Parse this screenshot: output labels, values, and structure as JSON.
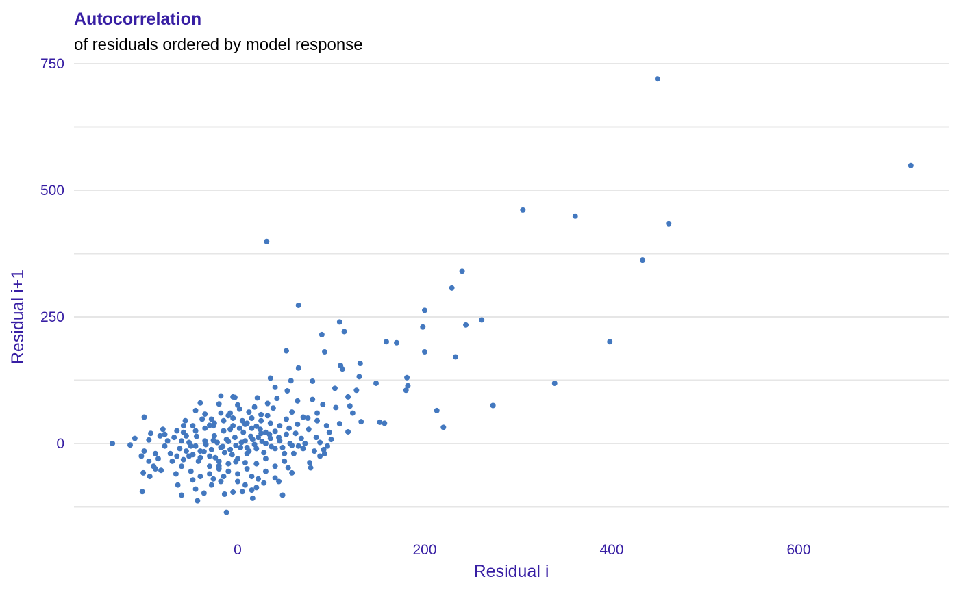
{
  "chart_data": {
    "type": "scatter",
    "title": "Autocorrelation",
    "subtitle": "of residuals ordered by model response",
    "xlabel": "Residual i",
    "ylabel": "Residual i+1",
    "xlim": [
      -145,
      760
    ],
    "ylim": [
      -145,
      760
    ],
    "xticks": [
      0,
      200,
      400,
      600
    ],
    "xtick_labels": [
      "0",
      "200",
      "400",
      "600"
    ],
    "yticks": [
      0,
      250,
      500,
      750
    ],
    "ytick_labels": [
      "0",
      "250",
      "500",
      "750"
    ],
    "y_minor_gridlines": [
      -125,
      125,
      375,
      625
    ],
    "grid": true,
    "point_color": "#4378bf",
    "grid_color": "#e6e6e6",
    "text_color": "#371ea3",
    "points": [
      [
        449,
        720
      ],
      [
        720,
        549
      ],
      [
        305,
        461
      ],
      [
        361,
        449
      ],
      [
        461,
        434
      ],
      [
        433,
        362
      ],
      [
        31,
        399
      ],
      [
        240,
        340
      ],
      [
        229,
        307
      ],
      [
        65,
        273
      ],
      [
        200,
        263
      ],
      [
        261,
        244
      ],
      [
        109,
        240
      ],
      [
        244,
        234
      ],
      [
        198,
        230
      ],
      [
        114,
        221
      ],
      [
        90,
        215
      ],
      [
        159,
        201
      ],
      [
        170,
        199
      ],
      [
        398,
        201
      ],
      [
        52,
        183
      ],
      [
        93,
        181
      ],
      [
        200,
        181
      ],
      [
        233,
        171
      ],
      [
        131,
        158
      ],
      [
        110,
        154
      ],
      [
        112,
        147
      ],
      [
        65,
        149
      ],
      [
        130,
        132
      ],
      [
        181,
        130
      ],
      [
        35,
        129
      ],
      [
        57,
        124
      ],
      [
        80,
        123
      ],
      [
        148,
        119
      ],
      [
        339,
        119
      ],
      [
        182,
        114
      ],
      [
        104,
        109
      ],
      [
        180,
        105
      ],
      [
        127,
        105
      ],
      [
        40,
        111
      ],
      [
        53,
        104
      ],
      [
        -18,
        94
      ],
      [
        -5,
        92
      ],
      [
        -3,
        91
      ],
      [
        21,
        90
      ],
      [
        42,
        89
      ],
      [
        80,
        87
      ],
      [
        118,
        92
      ],
      [
        -40,
        80
      ],
      [
        -20,
        78
      ],
      [
        0,
        76
      ],
      [
        32,
        79
      ],
      [
        64,
        84
      ],
      [
        91,
        77
      ],
      [
        273,
        75
      ],
      [
        105,
        71
      ],
      [
        120,
        74
      ],
      [
        213,
        65
      ],
      [
        123,
        60
      ],
      [
        -100,
        52
      ],
      [
        -45,
        65
      ],
      [
        -35,
        58
      ],
      [
        -10,
        55
      ],
      [
        25,
        57
      ],
      [
        85,
        60
      ],
      [
        109,
        39
      ],
      [
        132,
        43
      ],
      [
        152,
        42
      ],
      [
        157,
        40
      ],
      [
        -56,
        45
      ],
      [
        -26,
        35
      ],
      [
        8,
        38
      ],
      [
        75,
        50
      ],
      [
        220,
        32
      ],
      [
        -80,
        28
      ],
      [
        -65,
        25
      ],
      [
        -58,
        22
      ],
      [
        118,
        23
      ],
      [
        -93,
        20
      ],
      [
        -110,
        10
      ],
      [
        -83,
        15
      ],
      [
        -75,
        5
      ],
      [
        -95,
        7
      ],
      [
        -134,
        0
      ],
      [
        -115,
        -3
      ],
      [
        -100,
        -15
      ],
      [
        -88,
        -20
      ],
      [
        -103,
        -25
      ],
      [
        -95,
        -35
      ],
      [
        -90,
        -45
      ],
      [
        -88,
        -50
      ],
      [
        -101,
        -58
      ],
      [
        -102,
        -95
      ],
      [
        -94,
        -65
      ],
      [
        -82,
        -53
      ],
      [
        -64,
        -82
      ],
      [
        -60,
        -102
      ],
      [
        -45,
        -90
      ],
      [
        -43,
        -113
      ],
      [
        -36,
        -98
      ],
      [
        -28,
        -82
      ],
      [
        -18,
        -75
      ],
      [
        -14,
        -100
      ],
      [
        -12,
        -136
      ],
      [
        -5,
        -96
      ],
      [
        5,
        -95
      ],
      [
        15,
        -92
      ],
      [
        16,
        -108
      ],
      [
        20,
        -87
      ],
      [
        28,
        -78
      ],
      [
        40,
        -68
      ],
      [
        48,
        -102
      ],
      [
        58,
        -58
      ],
      [
        77,
        -38
      ],
      [
        88,
        -25
      ],
      [
        93,
        -20
      ],
      [
        82,
        -15
      ],
      [
        70,
        -10
      ],
      [
        65,
        -5
      ],
      [
        56,
        0
      ],
      [
        45,
        5
      ],
      [
        35,
        10
      ],
      [
        25,
        20
      ],
      [
        15,
        30
      ],
      [
        10,
        40
      ],
      [
        -5,
        35
      ],
      [
        -15,
        25
      ],
      [
        -25,
        15
      ],
      [
        -35,
        5
      ],
      [
        -45,
        -5
      ],
      [
        -55,
        -15
      ],
      [
        -65,
        -25
      ],
      [
        -70,
        -35
      ],
      [
        -60,
        -45
      ],
      [
        -50,
        -55
      ],
      [
        -40,
        -65
      ],
      [
        -30,
        -60
      ],
      [
        -20,
        -50
      ],
      [
        -10,
        -40
      ],
      [
        0,
        -30
      ],
      [
        10,
        -20
      ],
      [
        20,
        -10
      ],
      [
        30,
        0
      ],
      [
        40,
        -10
      ],
      [
        50,
        -20
      ],
      [
        30,
        -30
      ],
      [
        20,
        -40
      ],
      [
        10,
        -50
      ],
      [
        0,
        -60
      ],
      [
        -10,
        -55
      ],
      [
        -20,
        -35
      ],
      [
        -30,
        -25
      ],
      [
        -40,
        -15
      ],
      [
        -50,
        -5
      ],
      [
        -60,
        5
      ],
      [
        -55,
        15
      ],
      [
        -45,
        25
      ],
      [
        -35,
        30
      ],
      [
        -25,
        40
      ],
      [
        -15,
        45
      ],
      [
        -5,
        50
      ],
      [
        5,
        45
      ],
      [
        15,
        50
      ],
      [
        25,
        45
      ],
      [
        35,
        40
      ],
      [
        45,
        35
      ],
      [
        55,
        30
      ],
      [
        62,
        20
      ],
      [
        68,
        10
      ],
      [
        72,
        0
      ],
      [
        60,
        -20
      ],
      [
        50,
        -35
      ],
      [
        40,
        -45
      ],
      [
        30,
        -55
      ],
      [
        15,
        -65
      ],
      [
        0,
        -75
      ],
      [
        -15,
        -65
      ],
      [
        -30,
        -45
      ],
      [
        -42,
        -35
      ],
      [
        -52,
        -25
      ],
      [
        -62,
        -10
      ],
      [
        -72,
        -20
      ],
      [
        -78,
        -5
      ],
      [
        -68,
        12
      ],
      [
        -48,
        35
      ],
      [
        -28,
        48
      ],
      [
        -8,
        60
      ],
      [
        12,
        62
      ],
      [
        32,
        55
      ],
      [
        52,
        48
      ],
      [
        64,
        38
      ],
      [
        76,
        28
      ],
      [
        84,
        12
      ],
      [
        88,
        2
      ],
      [
        78,
        -48
      ],
      [
        54,
        -48
      ],
      [
        44,
        -75
      ],
      [
        22,
        -70
      ],
      [
        8,
        -82
      ],
      [
        -26,
        -70
      ],
      [
        -48,
        -72
      ],
      [
        -66,
        -60
      ],
      [
        -85,
        -30
      ],
      [
        -78,
        18
      ],
      [
        -58,
        35
      ],
      [
        -38,
        48
      ],
      [
        -18,
        60
      ],
      [
        2,
        68
      ],
      [
        18,
        72
      ],
      [
        38,
        70
      ],
      [
        58,
        62
      ],
      [
        70,
        52
      ],
      [
        85,
        45
      ],
      [
        95,
        35
      ],
      [
        98,
        22
      ],
      [
        100,
        8
      ],
      [
        96,
        -5
      ],
      [
        92,
        -12
      ],
      [
        -3,
        12
      ],
      [
        3,
        -8
      ],
      [
        8,
        5
      ],
      [
        -8,
        -12
      ],
      [
        12,
        -15
      ],
      [
        -12,
        8
      ],
      [
        18,
        -2
      ],
      [
        -18,
        -8
      ],
      [
        22,
        12
      ],
      [
        -22,
        2
      ],
      [
        28,
        -18
      ],
      [
        -28,
        -12
      ],
      [
        6,
        22
      ],
      [
        -6,
        -22
      ],
      [
        14,
        14
      ],
      [
        -14,
        -18
      ],
      [
        24,
        28
      ],
      [
        -24,
        -28
      ],
      [
        34,
        18
      ],
      [
        -34,
        -2
      ],
      [
        4,
        2
      ],
      [
        -2,
        -4
      ],
      [
        10,
        -8
      ],
      [
        -10,
        4
      ],
      [
        16,
        8
      ],
      [
        -16,
        -6
      ],
      [
        26,
        4
      ],
      [
        -26,
        6
      ],
      [
        36,
        -6
      ],
      [
        -36,
        -16
      ],
      [
        44,
        12
      ],
      [
        -44,
        14
      ],
      [
        48,
        -8
      ],
      [
        -48,
        -22
      ],
      [
        2,
        30
      ],
      [
        -2,
        -36
      ],
      [
        8,
        -38
      ],
      [
        -8,
        28
      ],
      [
        20,
        34
      ],
      [
        -20,
        -44
      ],
      [
        30,
        22
      ],
      [
        -30,
        36
      ],
      [
        40,
        24
      ],
      [
        -40,
        -28
      ],
      [
        52,
        18
      ],
      [
        -52,
        2
      ],
      [
        58,
        -4
      ],
      [
        -58,
        -32
      ]
    ]
  }
}
